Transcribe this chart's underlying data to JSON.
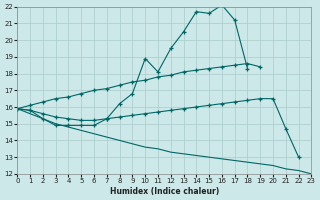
{
  "xlabel": "Humidex (Indice chaleur)",
  "bg_color": "#cce8e8",
  "grid_color": "#aacccc",
  "line_color": "#006666",
  "ylim": [
    12,
    22
  ],
  "xlim": [
    0,
    23
  ],
  "yticks": [
    12,
    13,
    14,
    15,
    16,
    17,
    18,
    19,
    20,
    21,
    22
  ],
  "xticks": [
    0,
    1,
    2,
    3,
    4,
    5,
    6,
    7,
    8,
    9,
    10,
    11,
    12,
    13,
    14,
    15,
    16,
    17,
    18,
    19,
    20,
    21,
    22,
    23
  ],
  "line_main_x": [
    0,
    1,
    2,
    3,
    4,
    5,
    6,
    7,
    8,
    9,
    10,
    11,
    12,
    13,
    14,
    15,
    16,
    17,
    18
  ],
  "line_main_y": [
    15.9,
    15.8,
    15.3,
    14.9,
    14.9,
    14.9,
    14.9,
    15.3,
    16.2,
    16.8,
    18.9,
    18.1,
    19.5,
    20.5,
    21.7,
    21.6,
    22.1,
    21.2,
    18.3
  ],
  "line_upper_x": [
    0,
    1,
    2,
    3,
    4,
    5,
    6,
    7,
    8,
    9,
    10,
    11,
    12,
    13,
    14,
    15,
    16,
    17,
    18,
    19
  ],
  "line_upper_y": [
    15.9,
    16.1,
    16.3,
    16.5,
    16.6,
    16.8,
    17.0,
    17.1,
    17.3,
    17.5,
    17.6,
    17.8,
    17.9,
    18.1,
    18.2,
    18.3,
    18.4,
    18.5,
    18.6,
    18.4
  ],
  "line_mid_x": [
    0,
    1,
    2,
    3,
    4,
    5,
    6,
    7,
    8,
    9,
    10,
    11,
    12,
    13,
    14,
    15,
    16,
    17,
    18,
    19,
    20,
    21,
    22
  ],
  "line_mid_y": [
    15.9,
    15.8,
    15.6,
    15.4,
    15.3,
    15.2,
    15.2,
    15.3,
    15.4,
    15.5,
    15.6,
    15.7,
    15.8,
    15.9,
    16.0,
    16.1,
    16.2,
    16.3,
    16.4,
    16.5,
    16.5,
    14.7,
    13.0
  ],
  "line_bot_x": [
    0,
    1,
    2,
    3,
    4,
    5,
    6,
    7,
    8,
    9,
    10,
    11,
    12,
    13,
    14,
    15,
    16,
    17,
    18,
    19,
    20,
    21,
    22,
    23
  ],
  "line_bot_y": [
    15.9,
    15.6,
    15.3,
    15.0,
    14.8,
    14.6,
    14.4,
    14.2,
    14.0,
    13.8,
    13.6,
    13.5,
    13.3,
    13.2,
    13.1,
    13.0,
    12.9,
    12.8,
    12.7,
    12.6,
    12.5,
    12.3,
    12.2,
    12.0
  ]
}
